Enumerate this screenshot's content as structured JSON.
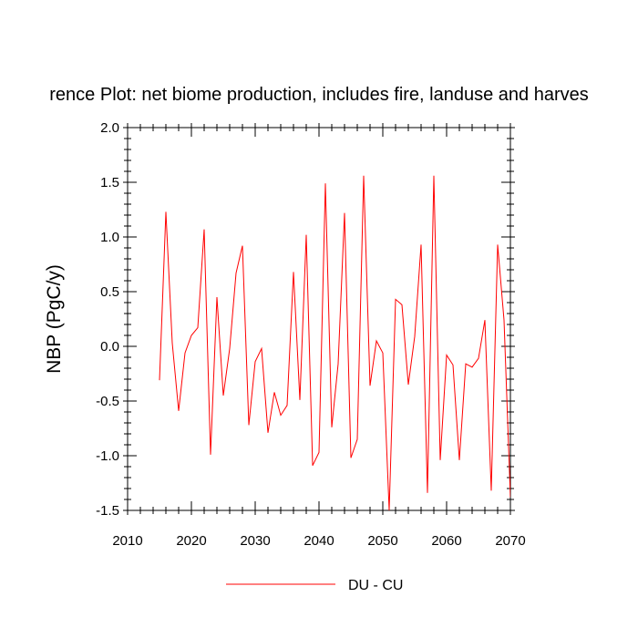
{
  "chart_data": {
    "type": "line",
    "title": "rence Plot: net biome production, includes fire, landuse and harves",
    "xlabel": "",
    "ylabel": "NBP  (PgC/y)",
    "xlim": [
      2010,
      2070
    ],
    "ylim": [
      -1.5,
      2.0
    ],
    "xticks": [
      2010,
      2020,
      2030,
      2040,
      2050,
      2060,
      2070
    ],
    "xtick_labels": [
      "2010",
      "2020",
      "2030",
      "2040",
      "2050",
      "2060",
      "2070"
    ],
    "yticks": [
      -1.5,
      -1.0,
      -0.5,
      0.0,
      0.5,
      1.0,
      1.5,
      2.0
    ],
    "ytick_labels": [
      "-1.5",
      "-1.0",
      "-0.5",
      "0.0",
      "0.5",
      "1.0",
      "1.5",
      "2.0"
    ],
    "grid": false,
    "legend": {
      "position": "bottom-center",
      "entries": [
        "DU - CU"
      ]
    },
    "series": [
      {
        "name": "DU - CU",
        "color": "#ff0000",
        "x": [
          2015,
          2016,
          2017,
          2018,
          2019,
          2020,
          2021,
          2022,
          2023,
          2024,
          2025,
          2026,
          2027,
          2028,
          2029,
          2030,
          2031,
          2032,
          2033,
          2034,
          2035,
          2036,
          2037,
          2038,
          2039,
          2040,
          2041,
          2042,
          2043,
          2044,
          2045,
          2046,
          2047,
          2048,
          2049,
          2050,
          2051,
          2052,
          2053,
          2054,
          2055,
          2056,
          2057,
          2058,
          2059,
          2060,
          2061,
          2062,
          2063,
          2064,
          2065,
          2066,
          2067,
          2068,
          2069,
          2070
        ],
        "y": [
          -0.31,
          1.23,
          0.03,
          -0.59,
          -0.06,
          0.1,
          0.17,
          1.07,
          -0.99,
          0.45,
          -0.45,
          -0.02,
          0.67,
          0.92,
          -0.72,
          -0.14,
          -0.02,
          -0.79,
          -0.42,
          -0.63,
          -0.54,
          0.68,
          -0.49,
          1.02,
          -1.09,
          -0.97,
          1.49,
          -0.74,
          -0.16,
          1.22,
          -1.02,
          -0.85,
          1.56,
          -0.36,
          0.05,
          -0.06,
          -1.5,
          0.43,
          0.38,
          -0.35,
          0.09,
          0.93,
          -1.34,
          1.56,
          -1.04,
          -0.08,
          -0.17,
          -1.04,
          -0.16,
          -0.19,
          -0.11,
          0.24,
          -1.32,
          0.93,
          0.24,
          -1.38
        ]
      }
    ]
  }
}
